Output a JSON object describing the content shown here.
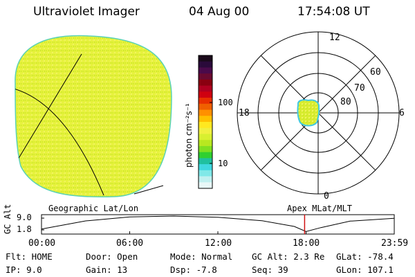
{
  "header": {
    "title": "Ultraviolet Imager",
    "date": "04 Aug 00",
    "time": "17:54:08 UT"
  },
  "colorbar": {
    "unit_label": "photon cm⁻²s⁻¹",
    "ticks": [
      "100",
      "10"
    ],
    "scale": "log",
    "colors_top_to_bottom": [
      "#1a0a1a",
      "#2a0a3a",
      "#4a0a4a",
      "#6a0a30",
      "#8a0010",
      "#b00020",
      "#d00010",
      "#e83000",
      "#f06000",
      "#ff9000",
      "#ffc000",
      "#ffe820",
      "#f0f040",
      "#d8f030",
      "#b8e820",
      "#80e020",
      "#30d030",
      "#20c0a0",
      "#40d8e0",
      "#80e8e8",
      "#c0f0f0",
      "#e8f8f8"
    ]
  },
  "polar_plot": {
    "mlt_labels": {
      "top": "12",
      "right": "6",
      "bottom": "0",
      "left": "18"
    },
    "lat_labels": [
      "60",
      "70",
      "80"
    ]
  },
  "left_disk": {
    "fill_color": "#e6f23c",
    "edge_color": "#5ad2b4"
  },
  "timeline": {
    "left_label": "Geographic Lat/Lon",
    "right_label": "Apex MLat/MLT",
    "yaxis_label": "GC Alt",
    "y_ticks": [
      "9.0",
      "1.8"
    ],
    "x_ticks": [
      "00:00",
      "06:00",
      "12:00",
      "18:00",
      "23:59"
    ],
    "current_marker_color": "#d01010",
    "chart_data": {
      "type": "line",
      "x_hours": [
        0,
        3,
        6,
        9,
        12,
        15,
        17.2,
        18.0,
        19,
        21,
        23.98
      ],
      "y_re": [
        3.4,
        6.9,
        8.6,
        9.0,
        8.5,
        7.0,
        4.5,
        2.3,
        4.0,
        6.8,
        8.0
      ],
      "current_time_hour": 17.9
    }
  },
  "footer": {
    "row1": {
      "flt": "Flt: HOME",
      "door": "Door: Open",
      "mode": "Mode: Normal",
      "gcalt": "GC Alt: 2.3 Re",
      "glat": "GLat: -78.4"
    },
    "row2": {
      "ip": "IP:  9.0",
      "gain": "Gain: 13",
      "dsp": "Dsp:   -7.8",
      "seq": "Seq: 39",
      "glon": "GLon: 107.1"
    }
  }
}
